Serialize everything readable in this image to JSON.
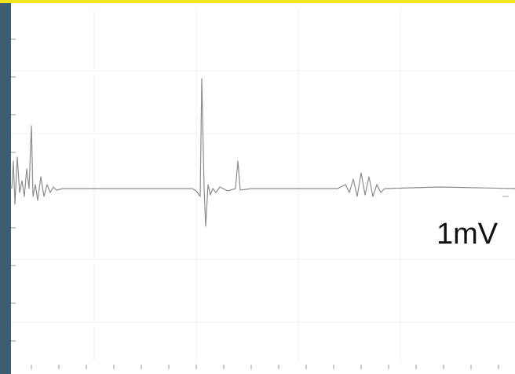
{
  "annotation": {
    "label": "1mV"
  }
}
